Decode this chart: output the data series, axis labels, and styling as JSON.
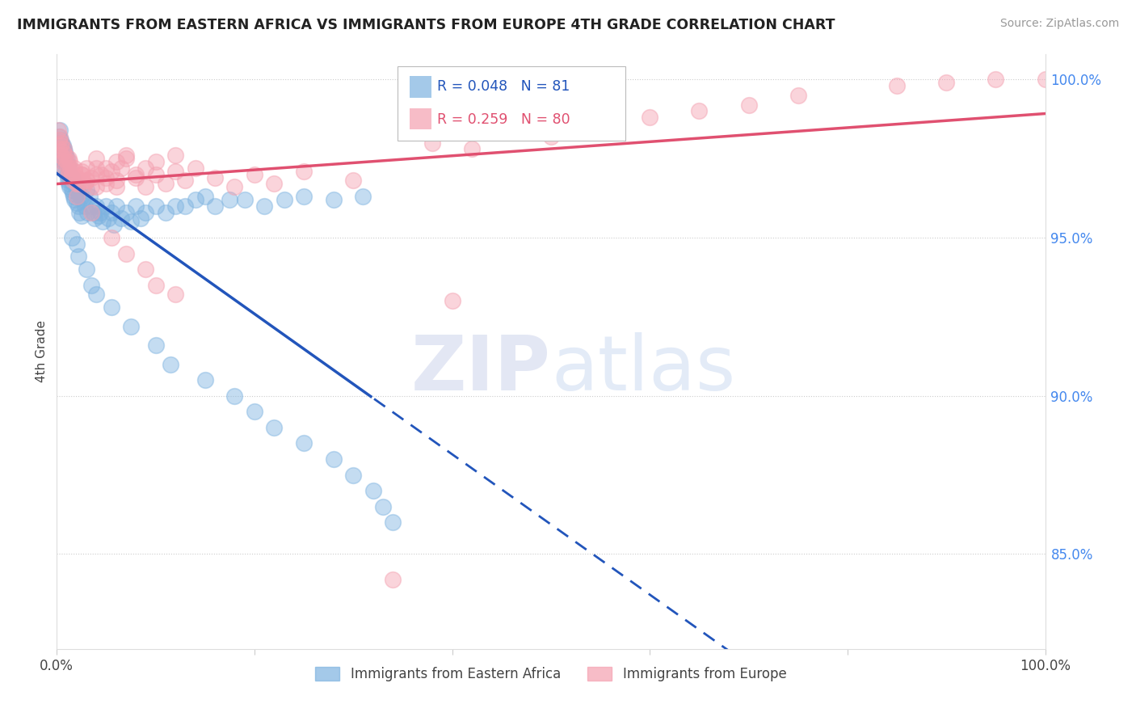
{
  "title": "IMMIGRANTS FROM EASTERN AFRICA VS IMMIGRANTS FROM EUROPE 4TH GRADE CORRELATION CHART",
  "source": "Source: ZipAtlas.com",
  "ylabel": "4th Grade",
  "ylabel_right_ticks": [
    "100.0%",
    "95.0%",
    "90.0%",
    "85.0%"
  ],
  "ylabel_right_vals": [
    1.0,
    0.95,
    0.9,
    0.85
  ],
  "legend1_label": "Immigrants from Eastern Africa",
  "legend2_label": "Immigrants from Europe",
  "R_blue": 0.048,
  "N_blue": 81,
  "R_pink": 0.259,
  "N_pink": 80,
  "blue_color": "#7EB3E0",
  "pink_color": "#F4A0B0",
  "trend_blue": "#2255BB",
  "trend_pink": "#E05070",
  "background": "#FFFFFF",
  "blue_x": [
    0.001,
    0.001,
    0.002,
    0.002,
    0.003,
    0.003,
    0.003,
    0.004,
    0.004,
    0.005,
    0.005,
    0.006,
    0.006,
    0.007,
    0.007,
    0.007,
    0.008,
    0.008,
    0.009,
    0.009,
    0.01,
    0.01,
    0.011,
    0.011,
    0.012,
    0.012,
    0.013,
    0.013,
    0.014,
    0.015,
    0.015,
    0.016,
    0.016,
    0.017,
    0.017,
    0.018,
    0.019,
    0.02,
    0.021,
    0.022,
    0.022,
    0.023,
    0.025,
    0.025,
    0.026,
    0.028,
    0.03,
    0.031,
    0.033,
    0.035,
    0.037,
    0.038,
    0.04,
    0.042,
    0.044,
    0.046,
    0.05,
    0.052,
    0.055,
    0.058,
    0.06,
    0.065,
    0.07,
    0.075,
    0.08,
    0.085,
    0.09,
    0.1,
    0.11,
    0.12,
    0.13,
    0.14,
    0.15,
    0.16,
    0.175,
    0.19,
    0.21,
    0.23,
    0.25,
    0.28,
    0.31
  ],
  "blue_y": [
    0.98,
    0.978,
    0.982,
    0.979,
    0.984,
    0.978,
    0.975,
    0.981,
    0.977,
    0.98,
    0.976,
    0.979,
    0.974,
    0.978,
    0.975,
    0.972,
    0.977,
    0.974,
    0.976,
    0.971,
    0.975,
    0.97,
    0.973,
    0.968,
    0.972,
    0.967,
    0.97,
    0.966,
    0.968,
    0.965,
    0.969,
    0.964,
    0.968,
    0.963,
    0.967,
    0.962,
    0.966,
    0.961,
    0.965,
    0.96,
    0.964,
    0.958,
    0.963,
    0.957,
    0.962,
    0.96,
    0.965,
    0.958,
    0.963,
    0.96,
    0.958,
    0.956,
    0.96,
    0.957,
    0.958,
    0.955,
    0.96,
    0.956,
    0.958,
    0.954,
    0.96,
    0.956,
    0.958,
    0.955,
    0.96,
    0.956,
    0.958,
    0.96,
    0.958,
    0.96,
    0.96,
    0.962,
    0.963,
    0.96,
    0.962,
    0.962,
    0.96,
    0.962,
    0.963,
    0.962,
    0.963
  ],
  "blue_y_outliers": [
    0.95,
    0.948,
    0.944,
    0.94,
    0.935,
    0.932,
    0.928,
    0.922,
    0.916,
    0.91,
    0.905,
    0.9,
    0.895,
    0.89,
    0.885,
    0.88,
    0.875,
    0.87,
    0.865,
    0.86
  ],
  "blue_x_outliers": [
    0.015,
    0.02,
    0.022,
    0.03,
    0.035,
    0.04,
    0.055,
    0.075,
    0.1,
    0.115,
    0.15,
    0.18,
    0.2,
    0.22,
    0.25,
    0.28,
    0.3,
    0.32,
    0.33,
    0.34
  ],
  "pink_x": [
    0.001,
    0.002,
    0.002,
    0.003,
    0.004,
    0.004,
    0.005,
    0.006,
    0.006,
    0.007,
    0.007,
    0.008,
    0.009,
    0.01,
    0.011,
    0.012,
    0.013,
    0.014,
    0.015,
    0.016,
    0.018,
    0.02,
    0.022,
    0.025,
    0.028,
    0.03,
    0.035,
    0.04,
    0.045,
    0.05,
    0.055,
    0.06,
    0.065,
    0.07,
    0.08,
    0.09,
    0.1,
    0.11,
    0.12,
    0.13,
    0.14,
    0.16,
    0.18,
    0.2,
    0.22,
    0.25,
    0.3,
    0.012,
    0.018,
    0.025,
    0.03,
    0.04,
    0.05,
    0.06,
    0.015,
    0.02,
    0.025,
    0.03,
    0.035,
    0.04,
    0.04,
    0.05,
    0.06,
    0.07,
    0.08,
    0.09,
    0.1,
    0.12,
    0.38,
    0.42,
    0.5,
    0.55,
    0.6,
    0.65,
    0.7,
    0.75,
    0.85,
    0.9,
    0.95,
    1.0
  ],
  "pink_y": [
    0.984,
    0.981,
    0.978,
    0.982,
    0.979,
    0.976,
    0.98,
    0.977,
    0.974,
    0.978,
    0.975,
    0.972,
    0.976,
    0.974,
    0.972,
    0.97,
    0.974,
    0.972,
    0.97,
    0.968,
    0.971,
    0.969,
    0.967,
    0.97,
    0.967,
    0.972,
    0.969,
    0.966,
    0.97,
    0.967,
    0.971,
    0.968,
    0.972,
    0.975,
    0.969,
    0.966,
    0.97,
    0.967,
    0.971,
    0.968,
    0.972,
    0.969,
    0.966,
    0.97,
    0.967,
    0.971,
    0.968,
    0.975,
    0.972,
    0.97,
    0.968,
    0.972,
    0.969,
    0.966,
    0.97,
    0.967,
    0.971,
    0.968,
    0.966,
    0.97,
    0.975,
    0.972,
    0.974,
    0.976,
    0.97,
    0.972,
    0.974,
    0.976,
    0.98,
    0.978,
    0.982,
    0.985,
    0.988,
    0.99,
    0.992,
    0.995,
    0.998,
    0.999,
    1.0,
    1.0
  ],
  "pink_y_outliers": [
    0.963,
    0.958,
    0.95,
    0.945,
    0.94,
    0.935,
    0.932,
    0.93,
    0.842
  ],
  "pink_x_outliers": [
    0.02,
    0.035,
    0.055,
    0.07,
    0.09,
    0.1,
    0.12,
    0.4,
    0.34
  ],
  "ylim_min": 0.82,
  "ylim_max": 1.008,
  "xlim_min": 0.0,
  "xlim_max": 1.0,
  "trend_split": 0.32
}
